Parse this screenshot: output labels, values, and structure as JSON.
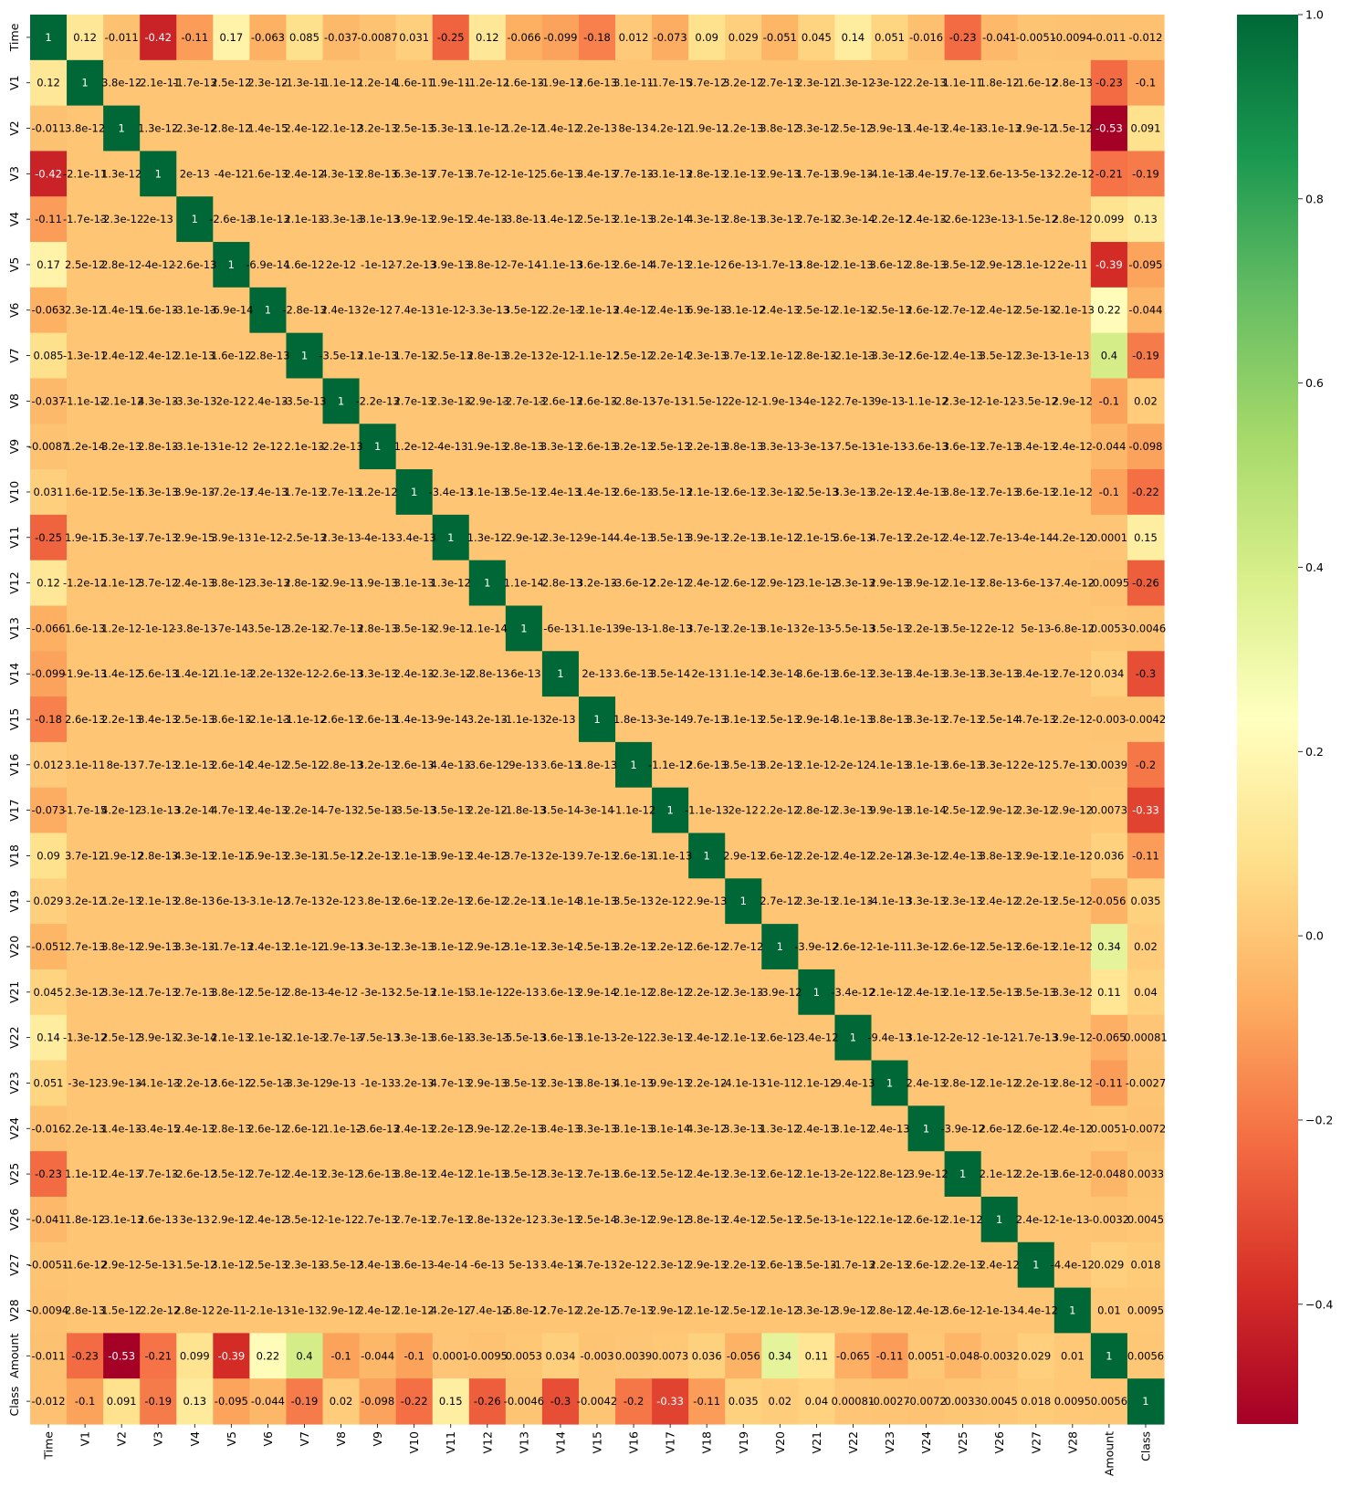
{
  "chart_data": {
    "type": "heatmap",
    "title": "",
    "labels": [
      "Time",
      "V1",
      "V2",
      "V3",
      "V4",
      "V5",
      "V6",
      "V7",
      "V8",
      "V9",
      "V10",
      "V11",
      "V12",
      "V13",
      "V14",
      "V15",
      "V16",
      "V17",
      "V18",
      "V19",
      "V20",
      "V21",
      "V22",
      "V23",
      "V24",
      "V25",
      "V26",
      "V27",
      "V28",
      "Amount",
      "Class"
    ],
    "cells": [
      [
        "1",
        "0.12",
        "-0.011",
        "-0.42",
        "-0.11",
        "0.17",
        "-0.063",
        "0.085",
        "-0.037",
        "-0.0087",
        "0.031",
        "-0.25",
        "0.12",
        "-0.066",
        "-0.099",
        "-0.18",
        "0.012",
        "-0.073",
        "0.09",
        "0.029",
        "-0.051",
        "0.045",
        "0.14",
        "0.051",
        "-0.016",
        "-0.23",
        "-0.041",
        "-0.0051",
        "-0.0094",
        "-0.011",
        "-0.012"
      ],
      [
        "0.12",
        "1",
        "3.8e-12",
        "-2.1e-11",
        "-1.7e-13",
        "2.5e-12",
        "2.3e-12",
        "-1.3e-11",
        "-1.1e-12",
        "1.2e-14",
        "1.6e-11",
        "1.9e-11",
        "-1.2e-12",
        "1.6e-13",
        "-1.9e-13",
        "2.6e-13",
        "3.1e-11",
        "-1.7e-15",
        "3.7e-12",
        "3.2e-12",
        "2.7e-13",
        "2.3e-12",
        "-1.3e-12",
        "-3e-12",
        "2.2e-13",
        "1.1e-11",
        "1.8e-12",
        "-1.6e-12",
        "2.8e-13",
        "-0.23",
        "-0.1"
      ],
      [
        "-0.011",
        "3.8e-12",
        "1",
        "1.3e-12",
        "-2.3e-12",
        "2.8e-12",
        "1.4e-15",
        "2.4e-12",
        "-2.1e-12",
        "3.2e-13",
        "2.5e-13",
        "5.3e-13",
        "1.1e-12",
        "1.2e-12",
        "1.4e-12",
        "2.2e-13",
        "8e-13",
        "4.2e-12",
        "-1.9e-12",
        "1.2e-13",
        "3.8e-12",
        "3.3e-12",
        "2.5e-12",
        "3.9e-13",
        "1.4e-13",
        "2.4e-13",
        "-3.1e-13",
        "2.9e-12",
        "1.5e-12",
        "-0.53",
        "0.091"
      ],
      [
        "-0.42",
        "-2.1e-11",
        "1.3e-12",
        "1",
        "2e-13",
        "-4e-12",
        "1.6e-13",
        "2.4e-12",
        "4.3e-13",
        "2.8e-13",
        "6.3e-13",
        "7.7e-13",
        "3.7e-12",
        "-1e-12",
        "5.6e-13",
        "3.4e-13",
        "7.7e-13",
        "-3.1e-13",
        "2.8e-13",
        "2.1e-13",
        "2.9e-13",
        "1.7e-13",
        "3.9e-13",
        "-4.1e-13",
        "-3.4e-15",
        "7.7e-13",
        "2.6e-13",
        "-5e-13",
        "-2.2e-12",
        "-0.21",
        "-0.19"
      ],
      [
        "-0.11",
        "-1.7e-13",
        "-2.3e-12",
        "2e-13",
        "1",
        "-2.6e-13",
        "-3.1e-13",
        "2.1e-13",
        "-3.3e-13",
        "-3.1e-13",
        "3.9e-13",
        "2.9e-15",
        "2.4e-13",
        "-3.8e-13",
        "1.4e-12",
        "2.5e-13",
        "2.1e-13",
        "3.2e-14",
        "4.3e-13",
        "2.8e-13",
        "3.3e-13",
        "2.7e-13",
        "-2.3e-14",
        "-2.2e-12",
        "2.4e-13",
        "-2.6e-12",
        "3e-13",
        "-1.5e-12",
        "2.8e-12",
        "0.099",
        "0.13"
      ],
      [
        "0.17",
        "2.5e-12",
        "2.8e-12",
        "-4e-12",
        "-2.6e-13",
        "1",
        "-6.9e-14",
        "1.6e-12",
        "2e-12",
        "-1e-12",
        "-7.2e-13",
        "3.9e-13",
        "3.8e-12",
        "-7e-14",
        "-1.1e-13",
        "3.6e-13",
        "2.6e-14",
        "4.7e-13",
        "2.1e-12",
        "6e-13",
        "-1.7e-13",
        "3.8e-12",
        "2.1e-13",
        "3.6e-12",
        "2.8e-13",
        "3.5e-12",
        "2.9e-12",
        "3.1e-12",
        "2e-11",
        "-0.39",
        "-0.095"
      ],
      [
        "-0.063",
        "2.3e-12",
        "1.4e-15",
        "1.6e-13",
        "-3.1e-13",
        "-6.9e-14",
        "1",
        "-2.8e-13",
        "2.4e-13",
        "2e-12",
        "7.4e-13",
        "1e-12",
        "-3.3e-13",
        "3.5e-12",
        "-2.2e-13",
        "-2.1e-13",
        "2.4e-12",
        "2.4e-13",
        "6.9e-13",
        "-3.1e-12",
        "2.4e-13",
        "2.5e-12",
        "2.1e-13",
        "-2.5e-13",
        "2.6e-12",
        "2.7e-12",
        "2.4e-12",
        "2.5e-13",
        "-2.1e-13",
        "0.22",
        "-0.044"
      ],
      [
        "0.085",
        "-1.3e-11",
        "2.4e-12",
        "2.4e-12",
        "2.1e-13",
        "1.6e-12",
        "-2.8e-13",
        "1",
        "-3.5e-13",
        "2.1e-13",
        "1.7e-13",
        "-2.5e-13",
        "2.8e-13",
        "3.2e-13",
        "2e-12",
        "-1.1e-12",
        "2.5e-12",
        "2.2e-14",
        "2.3e-13",
        "3.7e-13",
        "2.1e-12",
        "2.8e-13",
        "-2.1e-13",
        "-3.3e-12",
        "2.6e-12",
        "2.4e-13",
        "3.5e-12",
        "2.3e-13",
        "-1e-13",
        "0.4",
        "-0.19"
      ],
      [
        "-0.037",
        "-1.1e-12",
        "-2.1e-12",
        "4.3e-13",
        "-3.3e-13",
        "2e-12",
        "2.4e-13",
        "-3.5e-13",
        "1",
        "-2.2e-13",
        "2.7e-13",
        "2.3e-13",
        "-2.9e-13",
        "-2.7e-13",
        "-2.6e-13",
        "2.6e-13",
        "-2.8e-13",
        "-7e-13",
        "-1.5e-12",
        "2e-12",
        "-1.9e-13",
        "-4e-12",
        "-2.7e-13",
        "9e-13",
        "-1.1e-12",
        "2.3e-12",
        "-1e-12",
        "-3.5e-12",
        "2.9e-12",
        "-0.1",
        "0.02"
      ],
      [
        "-0.0087",
        "1.2e-14",
        "3.2e-13",
        "2.8e-13",
        "-3.1e-13",
        "-1e-12",
        "2e-12",
        "2.1e-13",
        "-2.2e-13",
        "1",
        "1.2e-12",
        "-4e-13",
        "1.9e-13",
        "2.8e-13",
        "3.3e-13",
        "2.6e-13",
        "3.2e-13",
        "2.5e-13",
        "2.2e-13",
        "3.8e-13",
        "3.3e-13",
        "-3e-13",
        "-7.5e-13",
        "-1e-13",
        "-3.6e-13",
        "3.6e-13",
        "2.7e-13",
        "3.4e-13",
        "2.4e-12",
        "-0.044",
        "-0.098"
      ],
      [
        "0.031",
        "1.6e-11",
        "2.5e-13",
        "6.3e-13",
        "3.9e-13",
        "-7.2e-13",
        "7.4e-13",
        "1.7e-13",
        "2.7e-13",
        "1.2e-12",
        "1",
        "-3.4e-13",
        "3.1e-13",
        "3.5e-13",
        "2.4e-13",
        "1.4e-13",
        "2.6e-13",
        "-3.5e-13",
        "2.1e-13",
        "2.6e-13",
        "2.3e-13",
        "-2.5e-13",
        "3.3e-13",
        "3.2e-13",
        "2.4e-13",
        "3.8e-13",
        "2.7e-13",
        "3.6e-13",
        "2.1e-12",
        "-0.1",
        "-0.22"
      ],
      [
        "-0.25",
        "1.9e-11",
        "5.3e-13",
        "7.7e-13",
        "2.9e-15",
        "3.9e-13",
        "1e-12",
        "-2.5e-13",
        "2.3e-13",
        "-4e-13",
        "-3.4e-13",
        "1",
        "1.3e-12",
        "-2.9e-12",
        "-2.3e-12",
        "-9e-14",
        "4.4e-13",
        "3.5e-13",
        "3.9e-13",
        "2.2e-13",
        "3.1e-12",
        "2.1e-15",
        "3.6e-13",
        "4.7e-13",
        "2.2e-12",
        "2.4e-12",
        "2.7e-13",
        "-4e-14",
        "4.2e-12",
        "0.0001",
        "0.15"
      ],
      [
        "0.12",
        "-1.2e-12",
        "1.1e-12",
        "3.7e-12",
        "2.4e-13",
        "3.8e-12",
        "-3.3e-13",
        "2.8e-13",
        "-2.9e-13",
        "1.9e-13",
        "3.1e-13",
        "1.3e-12",
        "1",
        "1.1e-14",
        "-2.8e-13",
        "3.2e-13",
        "-3.6e-12",
        "2.2e-12",
        "2.4e-12",
        "2.6e-12",
        "2.9e-12",
        "-3.1e-12",
        "-3.3e-13",
        "2.9e-13",
        "3.9e-12",
        "2.1e-13",
        "2.8e-13",
        "-6e-13",
        "-7.4e-12",
        "-0.0095",
        "-0.26"
      ],
      [
        "-0.066",
        "1.6e-13",
        "1.2e-12",
        "-1e-12",
        "-3.8e-13",
        "-7e-14",
        "3.5e-12",
        "3.2e-13",
        "-2.7e-13",
        "2.8e-13",
        "3.5e-13",
        "-2.9e-12",
        "1.1e-14",
        "1",
        "-6e-13",
        "-1.1e-13",
        "9e-13",
        "-1.8e-13",
        "3.7e-13",
        "2.2e-13",
        "3.1e-13",
        "2e-13",
        "-5.5e-13",
        "3.5e-13",
        "2.2e-13",
        "3.5e-12",
        "2e-12",
        "5e-13",
        "-6.8e-12",
        "0.0053",
        "-0.0046"
      ],
      [
        "-0.099",
        "-1.9e-13",
        "1.4e-12",
        "5.6e-13",
        "1.4e-12",
        "-1.1e-13",
        "-2.2e-13",
        "2e-12",
        "-2.6e-13",
        "3.3e-13",
        "2.4e-13",
        "-2.3e-12",
        "-2.8e-13",
        "-6e-13",
        "1",
        "2e-13",
        "3.6e-13",
        "3.5e-14",
        "2e-13",
        "1.1e-14",
        "2.3e-14",
        "3.6e-13",
        "3.6e-13",
        "2.3e-13",
        "3.4e-13",
        "3.3e-13",
        "3.3e-13",
        "3.4e-13",
        "2.7e-12",
        "0.034",
        "-0.3"
      ],
      [
        "-0.18",
        "2.6e-13",
        "2.2e-13",
        "3.4e-13",
        "2.5e-13",
        "3.6e-13",
        "-2.1e-13",
        "-1.1e-12",
        "2.6e-13",
        "2.6e-13",
        "1.4e-13",
        "-9e-14",
        "3.2e-13",
        "-1.1e-13",
        "2e-13",
        "1",
        "1.8e-13",
        "-3e-14",
        "9.7e-13",
        "3.1e-13",
        "2.5e-13",
        "2.9e-14",
        "3.1e-13",
        "3.8e-13",
        "3.3e-13",
        "2.7e-13",
        "2.5e-14",
        "4.7e-13",
        "2.2e-12",
        "-0.003",
        "-0.0042"
      ],
      [
        "0.012",
        "3.1e-11",
        "8e-13",
        "7.7e-13",
        "2.1e-13",
        "2.6e-14",
        "2.4e-12",
        "2.5e-12",
        "-2.8e-13",
        "3.2e-13",
        "2.6e-13",
        "4.4e-13",
        "-3.6e-12",
        "9e-13",
        "3.6e-13",
        "1.8e-13",
        "1",
        "-1.1e-12",
        "2.6e-13",
        "3.5e-13",
        "3.2e-13",
        "2.1e-12",
        "-2e-12",
        "4.1e-13",
        "3.1e-13",
        "3.6e-13",
        "3.3e-12",
        "2e-12",
        "5.7e-13",
        "0.0039",
        "-0.2"
      ],
      [
        "-0.073",
        "-1.7e-15",
        "4.2e-12",
        "-3.1e-13",
        "3.2e-14",
        "4.7e-13",
        "2.4e-13",
        "2.2e-14",
        "-7e-13",
        "2.5e-13",
        "-3.5e-13",
        "3.5e-13",
        "2.2e-12",
        "-1.8e-13",
        "3.5e-14",
        "-3e-14",
        "-1.1e-12",
        "1",
        "-1.1e-13",
        "2e-12",
        "2.2e-12",
        "2.8e-12",
        "2.3e-13",
        "9.9e-13",
        "3.1e-14",
        "2.5e-12",
        "2.9e-12",
        "2.3e-12",
        "2.9e-12",
        "0.0073",
        "-0.33"
      ],
      [
        "0.09",
        "3.7e-12",
        "-1.9e-12",
        "2.8e-13",
        "4.3e-13",
        "2.1e-12",
        "6.9e-13",
        "2.3e-13",
        "-1.5e-12",
        "2.2e-13",
        "2.1e-13",
        "3.9e-13",
        "2.4e-12",
        "3.7e-13",
        "2e-13",
        "9.7e-13",
        "2.6e-13",
        "-1.1e-13",
        "1",
        "2.9e-13",
        "2.6e-12",
        "2.2e-12",
        "2.4e-12",
        "2.2e-12",
        "4.3e-12",
        "2.4e-13",
        "3.8e-13",
        "2.9e-13",
        "2.1e-12",
        "0.036",
        "-0.11"
      ],
      [
        "0.029",
        "3.2e-12",
        "1.2e-13",
        "2.1e-13",
        "2.8e-13",
        "6e-13",
        "-3.1e-12",
        "3.7e-13",
        "2e-12",
        "3.8e-13",
        "2.6e-13",
        "2.2e-13",
        "2.6e-12",
        "2.2e-13",
        "1.1e-14",
        "3.1e-13",
        "3.5e-13",
        "2e-12",
        "2.9e-13",
        "1",
        "2.7e-12",
        "2.3e-13",
        "2.1e-13",
        "-4.1e-13",
        "3.3e-13",
        "2.3e-13",
        "2.4e-12",
        "2.2e-13",
        "2.5e-12",
        "-0.056",
        "0.035"
      ],
      [
        "-0.051",
        "2.7e-13",
        "3.8e-12",
        "2.9e-13",
        "3.3e-13",
        "-1.7e-13",
        "2.4e-13",
        "2.1e-12",
        "-1.9e-13",
        "3.3e-13",
        "2.3e-13",
        "3.1e-12",
        "2.9e-12",
        "3.1e-13",
        "2.3e-14",
        "2.5e-13",
        "3.2e-13",
        "2.2e-12",
        "2.6e-12",
        "2.7e-12",
        "1",
        "-3.9e-12",
        "2.6e-12",
        "-1e-11",
        "1.3e-12",
        "2.6e-12",
        "2.5e-13",
        "2.6e-13",
        "2.1e-12",
        "0.34",
        "0.02"
      ],
      [
        "0.045",
        "2.3e-12",
        "3.3e-12",
        "1.7e-13",
        "2.7e-13",
        "3.8e-12",
        "2.5e-12",
        "2.8e-13",
        "-4e-12",
        "-3e-13",
        "-2.5e-13",
        "2.1e-15",
        "-3.1e-12",
        "2e-13",
        "3.6e-13",
        "2.9e-14",
        "2.1e-12",
        "2.8e-12",
        "2.2e-12",
        "2.3e-13",
        "-3.9e-12",
        "1",
        "-3.4e-12",
        "2.1e-12",
        "2.4e-13",
        "2.1e-13",
        "2.5e-13",
        "3.5e-13",
        "3.3e-12",
        "0.11",
        "0.04"
      ],
      [
        "0.14",
        "-1.3e-12",
        "2.5e-12",
        "3.9e-13",
        "-2.3e-14",
        "2.1e-13",
        "2.1e-13",
        "-2.1e-13",
        "-2.7e-13",
        "-7.5e-13",
        "3.3e-13",
        "3.6e-13",
        "-3.3e-13",
        "-5.5e-13",
        "3.6e-13",
        "3.1e-13",
        "-2e-12",
        "2.3e-13",
        "2.4e-12",
        "2.1e-13",
        "2.6e-12",
        "-3.4e-12",
        "1",
        "-9.4e-13",
        "3.1e-12",
        "-2e-12",
        "-1e-12",
        "-1.7e-13",
        "3.9e-12",
        "-0.065",
        "0.00081"
      ],
      [
        "0.051",
        "-3e-12",
        "3.9e-13",
        "-4.1e-13",
        "-2.2e-12",
        "3.6e-12",
        "-2.5e-13",
        "-3.3e-12",
        "9e-13",
        "-1e-13",
        "3.2e-13",
        "4.7e-13",
        "2.9e-13",
        "3.5e-13",
        "2.3e-13",
        "3.8e-13",
        "4.1e-13",
        "9.9e-13",
        "2.2e-12",
        "-4.1e-13",
        "-1e-11",
        "2.1e-12",
        "-9.4e-13",
        "1",
        "2.4e-13",
        "2.8e-12",
        "2.1e-12",
        "2.2e-13",
        "2.8e-12",
        "-0.11",
        "-0.0027"
      ],
      [
        "-0.016",
        "2.2e-13",
        "1.4e-13",
        "-3.4e-15",
        "2.4e-13",
        "2.8e-13",
        "2.6e-12",
        "2.6e-12",
        "-1.1e-12",
        "-3.6e-13",
        "2.4e-13",
        "2.2e-12",
        "3.9e-12",
        "2.2e-13",
        "3.4e-13",
        "3.3e-13",
        "3.1e-13",
        "3.1e-14",
        "4.3e-12",
        "3.3e-13",
        "1.3e-12",
        "2.4e-13",
        "3.1e-12",
        "2.4e-13",
        "1",
        "-3.9e-12",
        "2.6e-12",
        "2.6e-12",
        "2.4e-12",
        "0.0051",
        "-0.0072"
      ],
      [
        "-0.23",
        "1.1e-11",
        "2.4e-13",
        "7.7e-13",
        "-2.6e-12",
        "3.5e-12",
        "2.7e-12",
        "2.4e-13",
        "2.3e-12",
        "3.6e-13",
        "3.8e-13",
        "2.4e-12",
        "2.1e-13",
        "3.5e-12",
        "3.3e-13",
        "2.7e-13",
        "3.6e-13",
        "2.5e-12",
        "2.4e-13",
        "2.3e-13",
        "2.6e-12",
        "2.1e-13",
        "-2e-12",
        "2.8e-12",
        "-3.9e-12",
        "1",
        "2.1e-12",
        "2.2e-13",
        "3.6e-12",
        "-0.048",
        "0.0033"
      ],
      [
        "-0.041",
        "1.8e-12",
        "-3.1e-13",
        "2.6e-13",
        "3e-13",
        "2.9e-12",
        "2.4e-12",
        "3.5e-12",
        "-1e-12",
        "2.7e-13",
        "2.7e-13",
        "2.7e-13",
        "2.8e-13",
        "2e-12",
        "3.3e-13",
        "2.5e-14",
        "3.3e-12",
        "2.9e-12",
        "3.8e-13",
        "2.4e-12",
        "2.5e-13",
        "2.5e-13",
        "-1e-12",
        "2.1e-12",
        "2.6e-12",
        "2.1e-12",
        "1",
        "2.4e-12",
        "-1e-13",
        "-0.0032",
        "0.0045"
      ],
      [
        "-0.0051",
        "-1.6e-12",
        "2.9e-12",
        "-5e-13",
        "-1.5e-12",
        "3.1e-12",
        "2.5e-13",
        "2.3e-13",
        "-3.5e-12",
        "3.4e-13",
        "3.6e-13",
        "-4e-14",
        "-6e-13",
        "5e-13",
        "3.4e-13",
        "4.7e-13",
        "2e-12",
        "2.3e-12",
        "2.9e-13",
        "2.2e-13",
        "2.6e-13",
        "3.5e-13",
        "-1.7e-13",
        "2.2e-13",
        "2.6e-12",
        "2.2e-13",
        "2.4e-12",
        "1",
        "-4.4e-12",
        "0.029",
        "0.018"
      ],
      [
        "-0.0094",
        "2.8e-13",
        "1.5e-12",
        "-2.2e-12",
        "2.8e-12",
        "2e-11",
        "-2.1e-13",
        "-1e-13",
        "2.9e-12",
        "2.4e-12",
        "2.1e-12",
        "4.2e-12",
        "-7.4e-12",
        "-6.8e-12",
        "2.7e-12",
        "2.2e-12",
        "5.7e-13",
        "2.9e-12",
        "2.1e-12",
        "2.5e-12",
        "2.1e-12",
        "3.3e-12",
        "3.9e-12",
        "2.8e-12",
        "2.4e-12",
        "3.6e-12",
        "-1e-13",
        "-4.4e-12",
        "1",
        "0.01",
        "0.0095"
      ],
      [
        "-0.011",
        "-0.23",
        "-0.53",
        "-0.21",
        "0.099",
        "-0.39",
        "0.22",
        "0.4",
        "-0.1",
        "-0.044",
        "-0.1",
        "0.0001",
        "-0.0095",
        "0.0053",
        "0.034",
        "-0.003",
        "0.0039",
        "0.0073",
        "0.036",
        "-0.056",
        "0.34",
        "0.11",
        "-0.065",
        "-0.11",
        "0.0051",
        "-0.048",
        "-0.0032",
        "0.029",
        "0.01",
        "1",
        "0.0056"
      ],
      [
        "-0.012",
        "-0.1",
        "0.091",
        "-0.19",
        "0.13",
        "-0.095",
        "-0.044",
        "-0.19",
        "0.02",
        "-0.098",
        "-0.22",
        "0.15",
        "-0.26",
        "-0.0046",
        "-0.3",
        "-0.0042",
        "-0.2",
        "-0.33",
        "-0.11",
        "0.035",
        "0.02",
        "0.04",
        "0.00081",
        "-0.0027",
        "-0.0072",
        "0.0033",
        "0.0045",
        "0.018",
        "0.0095",
        "0.0056",
        "1"
      ]
    ],
    "colorbar": {
      "min": -0.53,
      "max": 1.0,
      "ticks": [
        "1.0",
        "0.8",
        "0.6",
        "0.4",
        "0.2",
        "0.0",
        "−0.2",
        "−0.4"
      ],
      "tick_values": [
        1.0,
        0.8,
        0.6,
        0.4,
        0.2,
        0.0,
        -0.2,
        -0.4
      ],
      "colormap": [
        "#a50026",
        "#d73027",
        "#f46d43",
        "#fdae61",
        "#fee08b",
        "#ffffbf",
        "#d9ef8b",
        "#a6d96a",
        "#66bd63",
        "#1a9850",
        "#006837"
      ]
    },
    "colors": {
      "text_dark": "#000000",
      "text_light": "#ffffff"
    }
  }
}
